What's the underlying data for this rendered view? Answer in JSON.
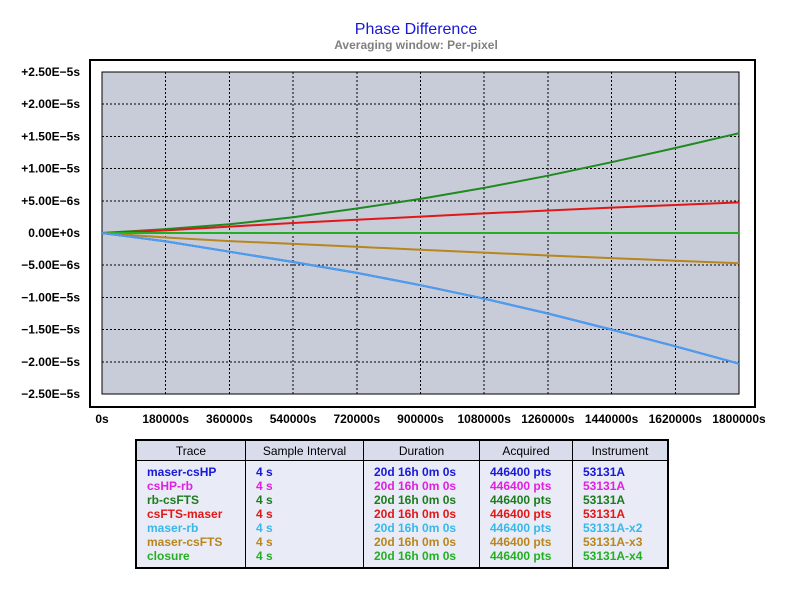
{
  "chart_data": {
    "type": "line",
    "title": "Phase Difference",
    "subtitle": "Averaging window: Per-pixel",
    "xlim": [
      0,
      1800000
    ],
    "ylim": [
      -2.5e-05,
      2.5e-05
    ],
    "x_ticks": [
      0,
      180000,
      360000,
      540000,
      720000,
      900000,
      1080000,
      1260000,
      1440000,
      1620000,
      1800000
    ],
    "x_tick_labels": [
      "0s",
      "180000s",
      "360000s",
      "540000s",
      "720000s",
      "900000s",
      "1080000s",
      "1260000s",
      "1440000s",
      "1620000s",
      "1800000s"
    ],
    "y_ticks": [
      2.5e-05,
      2e-05,
      1.5e-05,
      1e-05,
      5e-06,
      0,
      -5e-06,
      -1e-05,
      -1.5e-05,
      -2e-05,
      -2.5e-05
    ],
    "y_tick_labels": [
      "+2.50E−5s",
      "+2.00E−5s",
      "+1.50E−5s",
      "+1.00E−5s",
      "+5.00E−6s",
      "0.00E+0s",
      "−5.00E−6s",
      "−1.00E−5s",
      "−1.50E−5s",
      "−2.00E−5s",
      "−2.50E−5s"
    ],
    "zero_label_color": "#1818d8",
    "grid": true,
    "plot_background": "#c8ccd8",
    "x": [
      0,
      180000,
      360000,
      540000,
      720000,
      900000,
      1080000,
      1260000,
      1440000,
      1620000,
      1800000
    ],
    "series": [
      {
        "name": "rb-csFTS",
        "color": "#1f8a1f",
        "values": [
          0,
          6e-07,
          1.35e-06,
          2.45e-06,
          3.8e-06,
          5.3e-06,
          7e-06,
          8.9e-06,
          1.1e-05,
          1.32e-05,
          1.55e-05
        ]
      },
      {
        "name": "csFTS-maser",
        "color": "#e01818",
        "values": [
          0,
          4e-07,
          1e-06,
          1.55e-06,
          2.05e-06,
          2.55e-06,
          3.05e-06,
          3.5e-06,
          3.95e-06,
          4.35e-06,
          4.75e-06
        ]
      },
      {
        "name": "closure",
        "color": "#22b022",
        "values": [
          0,
          0,
          0,
          0,
          0,
          0,
          0,
          0,
          0,
          0,
          0
        ]
      },
      {
        "name": "maser-csFTS",
        "color": "#b8861c",
        "values": [
          0,
          -7e-07,
          -1.25e-06,
          -1.7e-06,
          -2.15e-06,
          -2.6e-06,
          -3.05e-06,
          -3.5e-06,
          -3.9e-06,
          -4.3e-06,
          -4.7e-06
        ]
      },
      {
        "name": "maser-csHP",
        "color": "#1818d8",
        "values": [
          0,
          -1.3e-06,
          -2.9e-06,
          -4.5e-06,
          -6.2e-06,
          -8.1e-06,
          -1.02e-05,
          -1.25e-05,
          -1.5e-05,
          -1.76e-05,
          -2.03e-05
        ]
      },
      {
        "name": "maser-rb",
        "color": "#4aa0ee",
        "values": [
          0,
          -1.3e-06,
          -2.9e-06,
          -4.5e-06,
          -6.2e-06,
          -8.1e-06,
          -1.02e-05,
          -1.25e-05,
          -1.5e-05,
          -1.76e-05,
          -2.03e-05
        ]
      }
    ]
  },
  "legend": {
    "headers": [
      "Trace",
      "Sample Interval",
      "Duration",
      "Acquired",
      "Instrument"
    ],
    "rows": [
      {
        "trace": "maser-csHP",
        "interval": "4 s",
        "duration": "20d 16h 0m 0s",
        "acquired": "446400 pts",
        "instrument": "53131A",
        "color": "#1818d8"
      },
      {
        "trace": "csHP-rb",
        "interval": "4 s",
        "duration": "20d 16h 0m 0s",
        "acquired": "446400 pts",
        "instrument": "53131A",
        "color": "#e020e0"
      },
      {
        "trace": "rb-csFTS",
        "interval": "4 s",
        "duration": "20d 16h 0m 0s",
        "acquired": "446400 pts",
        "instrument": "53131A",
        "color": "#1f7a1f"
      },
      {
        "trace": "csFTS-maser",
        "interval": "4 s",
        "duration": "20d 16h 0m 0s",
        "acquired": "446400 pts",
        "instrument": "53131A",
        "color": "#e01818"
      },
      {
        "trace": "maser-rb",
        "interval": "4 s",
        "duration": "20d 16h 0m 0s",
        "acquired": "446400 pts",
        "instrument": "53131A-x2",
        "color": "#38b8e8"
      },
      {
        "trace": "maser-csFTS",
        "interval": "4 s",
        "duration": "20d 16h 0m 0s",
        "acquired": "446400 pts",
        "instrument": "53131A-x3",
        "color": "#b8861c"
      },
      {
        "trace": "closure",
        "interval": "4 s",
        "duration": "20d 16h 0m 0s",
        "acquired": "446400 pts",
        "instrument": "53131A-x4",
        "color": "#22b022"
      }
    ]
  }
}
